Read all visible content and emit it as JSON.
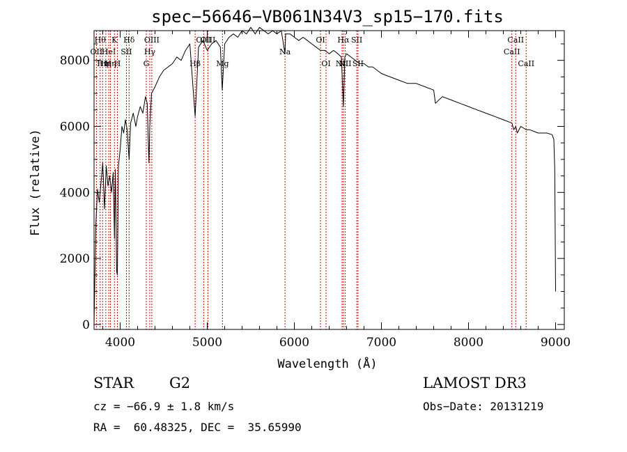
{
  "chart_data": {
    "type": "line",
    "title": "spec−56646−VB061N34V3_sp15−170.fits",
    "xlabel": "Wavelength (Å)",
    "ylabel": "Flux (relative)",
    "xlim": [
      3700,
      9100
    ],
    "ylim": [
      -150,
      8900
    ],
    "xticks": [
      {
        "value": 4000,
        "label": "4000"
      },
      {
        "value": 5000,
        "label": "5000"
      },
      {
        "value": 6000,
        "label": "6000"
      },
      {
        "value": 7000,
        "label": "7000"
      },
      {
        "value": 8000,
        "label": "8000"
      },
      {
        "value": 9000,
        "label": "9000"
      }
    ],
    "yticks": [
      {
        "value": 0,
        "label": "0"
      },
      {
        "value": 2000,
        "label": "2000"
      },
      {
        "value": 4000,
        "label": "4000"
      },
      {
        "value": 6000,
        "label": "6000"
      },
      {
        "value": 8000,
        "label": "8000"
      }
    ],
    "series": [
      {
        "name": "flux",
        "color": "#000000",
        "x": [
          3700,
          3720,
          3740,
          3760,
          3780,
          3800,
          3820,
          3840,
          3860,
          3880,
          3900,
          3920,
          3934,
          3945,
          3960,
          3968,
          3980,
          4000,
          4020,
          4040,
          4060,
          4080,
          4102,
          4120,
          4150,
          4180,
          4200,
          4230,
          4260,
          4290,
          4310,
          4330,
          4340,
          4360,
          4400,
          4450,
          4500,
          4550,
          4600,
          4650,
          4700,
          4750,
          4800,
          4861,
          4900,
          4950,
          5000,
          5050,
          5100,
          5150,
          5172,
          5200,
          5250,
          5300,
          5350,
          5400,
          5450,
          5500,
          5550,
          5600,
          5650,
          5700,
          5750,
          5800,
          5850,
          5893,
          5900,
          5950,
          6000,
          6050,
          6100,
          6150,
          6200,
          6250,
          6300,
          6350,
          6400,
          6450,
          6500,
          6540,
          6563,
          6580,
          6600,
          6650,
          6700,
          6750,
          6800,
          6850,
          6900,
          6950,
          7000,
          7100,
          7200,
          7300,
          7400,
          7500,
          7600,
          7620,
          7700,
          7800,
          7900,
          8000,
          8100,
          8200,
          8300,
          8400,
          8498,
          8520,
          8542,
          8560,
          8600,
          8662,
          8700,
          8800,
          8900,
          8960,
          8980,
          8990,
          9000
        ],
        "y": [
          0,
          3000,
          4100,
          3700,
          4300,
          4900,
          3500,
          4800,
          4200,
          4500,
          4000,
          4600,
          2600,
          4700,
          1600,
          1500,
          4800,
          5300,
          6000,
          5800,
          6200,
          5900,
          5000,
          6100,
          6400,
          6000,
          6300,
          6600,
          6400,
          6900,
          6700,
          4900,
          6000,
          7000,
          7200,
          7500,
          7700,
          7800,
          7900,
          8100,
          8000,
          8300,
          8500,
          6300,
          8400,
          8600,
          8300,
          8500,
          8600,
          8400,
          7100,
          8500,
          8700,
          8800,
          8700,
          8900,
          8800,
          9000,
          8800,
          9000,
          8900,
          8800,
          8900,
          8800,
          8900,
          8200,
          8800,
          8800,
          8700,
          8600,
          8700,
          8600,
          8500,
          8400,
          8300,
          8300,
          8200,
          8300,
          8200,
          8100,
          6600,
          8100,
          8200,
          8100,
          8000,
          7900,
          7900,
          7800,
          7800,
          7700,
          7600,
          7500,
          7400,
          7300,
          7300,
          7200,
          7100,
          6700,
          6900,
          6800,
          6700,
          6600,
          6500,
          6400,
          6300,
          6200,
          6100,
          5900,
          6000,
          5800,
          6000,
          5900,
          5900,
          5800,
          5800,
          5750,
          5600,
          4700,
          1000
        ]
      }
    ],
    "line_markers": [
      {
        "wavelength": 3727,
        "label": "OII",
        "row": 2
      },
      {
        "wavelength": 3770,
        "label": "Hθ",
        "row": 1
      },
      {
        "wavelength": 3798,
        "label": "Hη",
        "row": 3
      },
      {
        "wavelength": 3835,
        "label": "Hη",
        "row": 3
      },
      {
        "wavelength": 3869,
        "label": "HeI",
        "row": 2
      },
      {
        "wavelength": 3889,
        "label": "Hη",
        "row": 3
      },
      {
        "wavelength": 3934,
        "label": "K",
        "row": 1
      },
      {
        "wavelength": 3968,
        "label": "H",
        "row": 3
      },
      {
        "wavelength": 4072,
        "label": "SII",
        "row": 2
      },
      {
        "wavelength": 4102,
        "label": "Hδ",
        "row": 1
      },
      {
        "wavelength": 4300,
        "label": "G",
        "row": 3
      },
      {
        "wavelength": 4340,
        "label": "Hγ",
        "row": 2
      },
      {
        "wavelength": 4363,
        "label": "OIII",
        "row": 1
      },
      {
        "wavelength": 4861,
        "label": "Hβ",
        "row": 3
      },
      {
        "wavelength": 4959,
        "label": "OIII",
        "row": 1
      },
      {
        "wavelength": 5007,
        "label": "OIII",
        "row": 1
      },
      {
        "wavelength": 5175,
        "label": "Mg",
        "row": 3
      },
      {
        "wavelength": 5893,
        "label": "Na",
        "row": 2
      },
      {
        "wavelength": 6300,
        "label": "OI",
        "row": 1
      },
      {
        "wavelength": 6364,
        "label": "OI",
        "row": 3
      },
      {
        "wavelength": 6548,
        "label": "NII",
        "row": 3
      },
      {
        "wavelength": 6563,
        "label": "Hα",
        "row": 1
      },
      {
        "wavelength": 6583,
        "label": "NII",
        "row": 3
      },
      {
        "wavelength": 6717,
        "label": "SII",
        "row": 1
      },
      {
        "wavelength": 6731,
        "label": "SII",
        "row": 3
      },
      {
        "wavelength": 8498,
        "label": "CaII",
        "row": 2
      },
      {
        "wavelength": 8542,
        "label": "CaII",
        "row": 1
      },
      {
        "wavelength": 8662,
        "label": "CaII",
        "row": 3
      }
    ],
    "marker_color": "#cc0000"
  },
  "footer": {
    "class_type": "STAR",
    "subclass": "G2",
    "survey": "LAMOST DR3",
    "redshift": "cz = −66.9 ± 1.8 km/s",
    "obs_date": "Obs−Date: 20131219",
    "coords": "RA =  60.48325, DEC =  35.65990"
  }
}
